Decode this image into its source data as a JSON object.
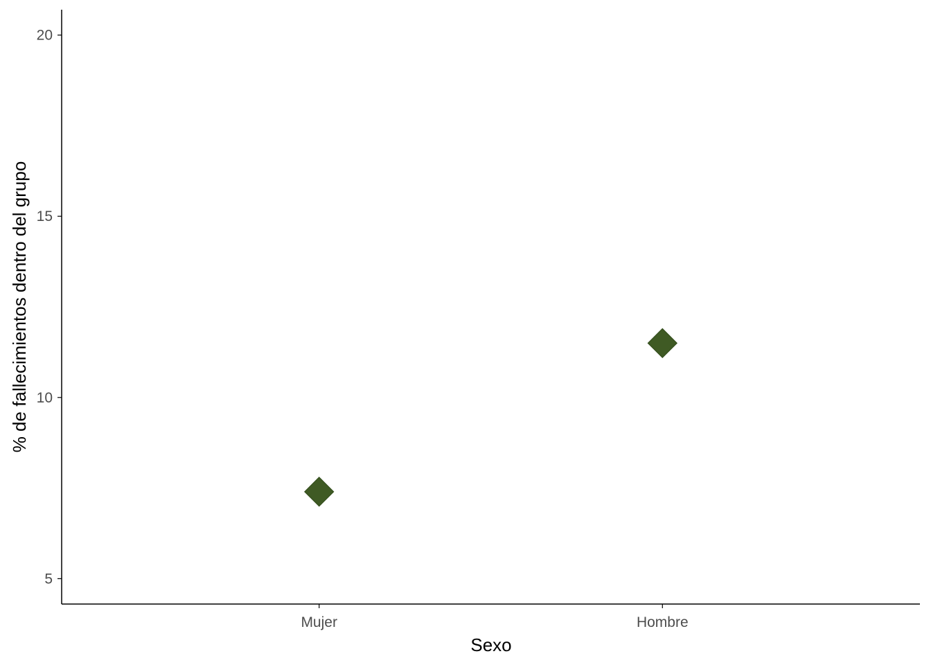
{
  "chart_data": {
    "type": "scatter",
    "title": "",
    "xlabel": "Sexo",
    "ylabel": "% de fallecimientos dentro del grupo",
    "categories": [
      "Mujer",
      "Hombre"
    ],
    "values": [
      7.4,
      11.5
    ],
    "ylim": [
      4.3,
      20.7
    ],
    "yticks": [
      "5",
      "10",
      "15",
      "20"
    ],
    "marker": "diamond",
    "grid": false,
    "legend": "none"
  },
  "colors": {
    "point": "#3f5a24",
    "axis": "#000000",
    "tick_label": "#4d4d4d"
  }
}
